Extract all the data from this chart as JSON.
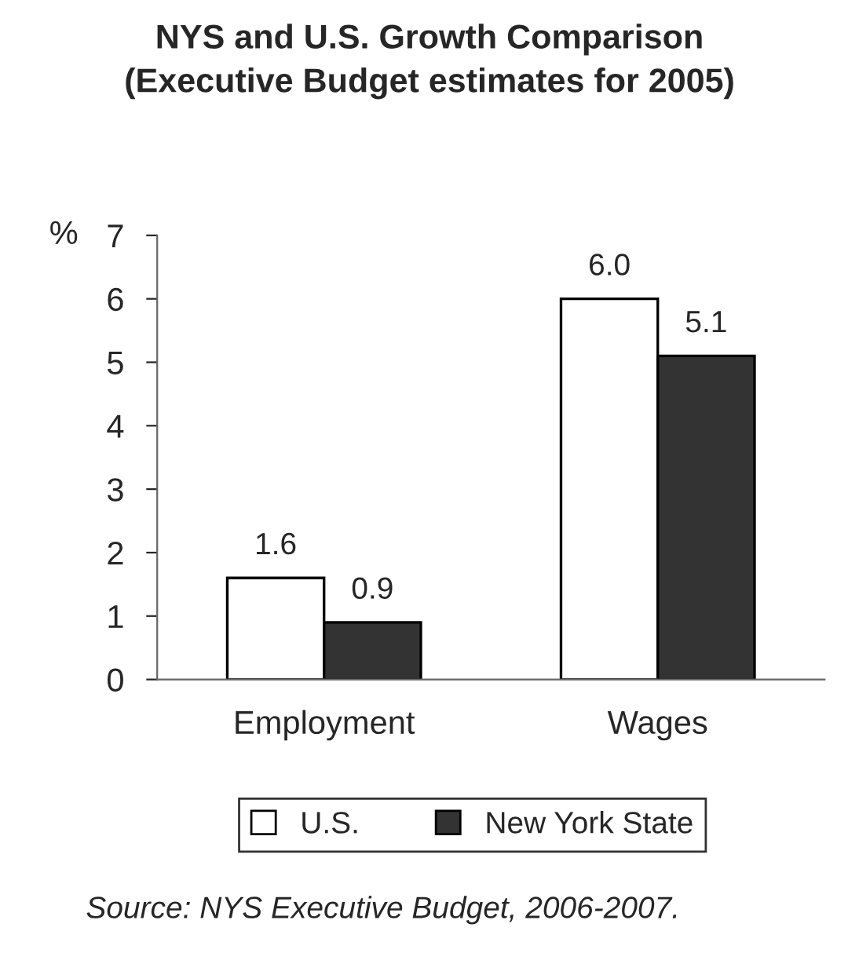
{
  "chart_data": {
    "type": "bar",
    "title": "NYS and U.S. Growth Comparison\n(Executive Budget estimates for 2005)",
    "ylabel": "%",
    "categories": [
      "Employment",
      "Wages"
    ],
    "series": [
      {
        "name": "U.S.",
        "color": "#ffffff",
        "values": [
          1.6,
          6.0
        ],
        "value_labels": [
          "1.6",
          "6.0"
        ]
      },
      {
        "name": "New York State",
        "color": "#333333",
        "values": [
          0.9,
          5.1
        ],
        "value_labels": [
          "0.9",
          "5.1"
        ]
      }
    ],
    "ylim": [
      0,
      7
    ],
    "yticks": [
      0,
      1,
      2,
      3,
      4,
      5,
      6,
      7
    ],
    "grid": false,
    "legend": "bottom",
    "annotations": [
      "Source: NYS Executive Budget, 2006-2007."
    ]
  }
}
